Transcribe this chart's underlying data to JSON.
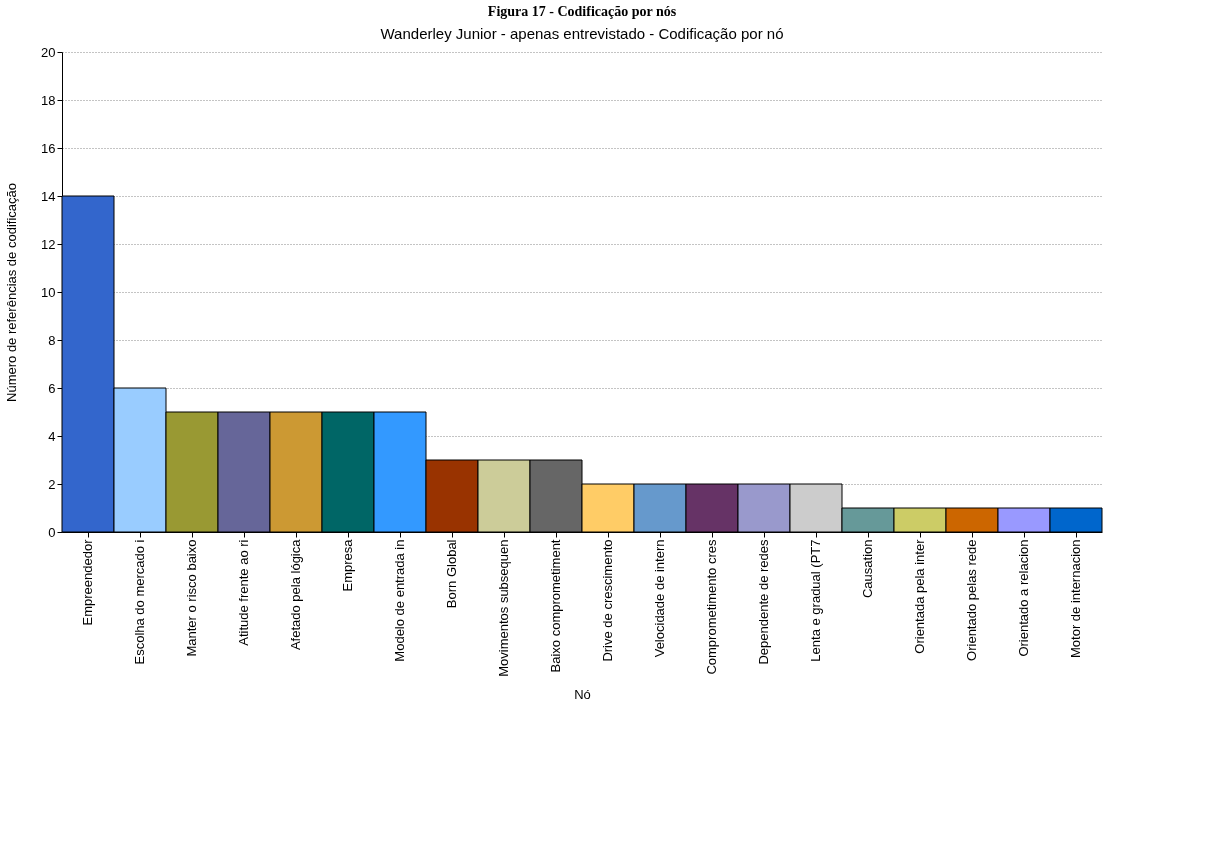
{
  "chart_data": {
    "type": "bar",
    "title": "Wanderley Junior - apenas entrevistado - Codificação por nó",
    "xlabel": "Nó",
    "ylabel": "Número de referências de codificação",
    "annotations": [
      "Figura 17 - Codificação por nós"
    ],
    "categories": [
      "Empreendedor",
      "Escolha do mercado i",
      "Manter o risco baixo",
      "Atitude frente ao ri",
      "Afetado pela lógica",
      "Empresa",
      "Modelo de entrada in",
      "Born Global",
      "Movimentos subsequen",
      "Baixo comprometiment",
      "Drive de crescimento",
      "Velocidade de intern",
      "Comprometimento cres",
      "Dependente de redes",
      "Lenta e gradual (PT7",
      "Causation",
      "Orientada pela inter",
      "Orientado pelas rede",
      "Orientado a relacion",
      "Motor de internacion"
    ],
    "values": [
      14,
      6,
      5,
      5,
      5,
      5,
      5,
      3,
      3,
      3,
      2,
      2,
      2,
      2,
      2,
      1,
      1,
      1,
      1,
      1
    ],
    "colors": [
      "#3366cc",
      "#99ccff",
      "#999933",
      "#666699",
      "#cc9933",
      "#006666",
      "#3399ff",
      "#993300",
      "#cccc99",
      "#666666",
      "#ffcc66",
      "#6699cc",
      "#663366",
      "#9999cc",
      "#cccccc",
      "#669999",
      "#cccc66",
      "#cc6600",
      "#9999ff",
      "#0066cc"
    ],
    "ylim": [
      0,
      20
    ],
    "yticks": [
      0,
      2,
      4,
      6,
      8,
      10,
      12,
      14,
      16,
      18,
      20
    ],
    "grid": "y"
  }
}
